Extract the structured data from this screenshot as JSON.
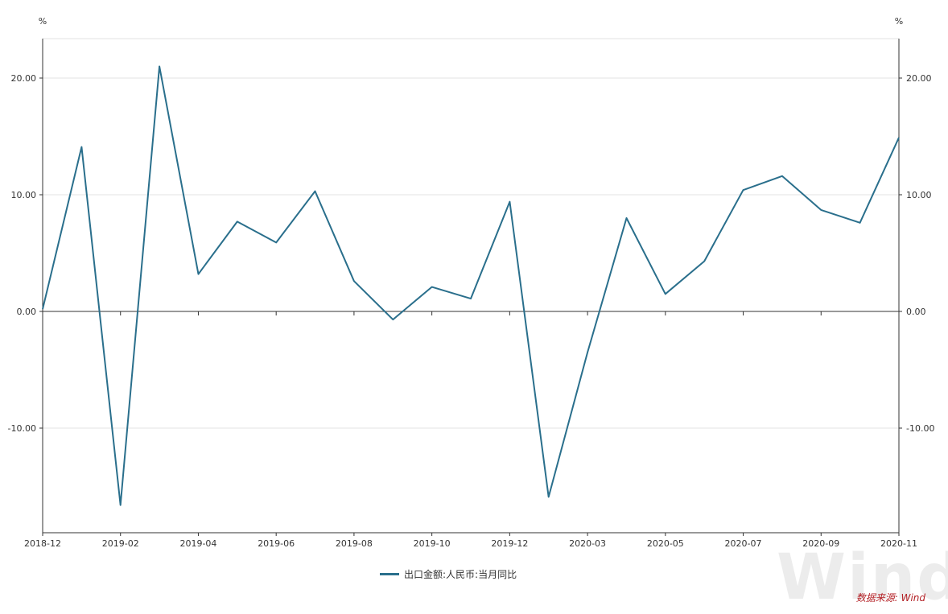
{
  "chart_data": {
    "type": "line",
    "y_unit_left": "%",
    "y_unit_right": "%",
    "ylim": [
      -19,
      23.5
    ],
    "yticks": [
      -10,
      0,
      10,
      20
    ],
    "ytick_labels": [
      "-10.00",
      "0.00",
      "10.00",
      "20.00"
    ],
    "grid": true,
    "xtick_labels": [
      "2018-12",
      "2019-02",
      "2019-04",
      "2019-06",
      "2019-08",
      "2019-10",
      "2019-12",
      "2020-03",
      "2020-05",
      "2020-07",
      "2020-09",
      "2020-11"
    ],
    "x": [
      "2018-12",
      "2019-01",
      "2019-02",
      "2019-03",
      "2019-04",
      "2019-05",
      "2019-06",
      "2019-07",
      "2019-08",
      "2019-09",
      "2019-10",
      "2019-11",
      "2019-12",
      "2020-02",
      "2020-03",
      "2020-04",
      "2020-05",
      "2020-06",
      "2020-07",
      "2020-08",
      "2020-09",
      "2020-10",
      "2020-11"
    ],
    "series": [
      {
        "name": "出口金额:人民币:当月同比",
        "color": "#2a6f8c",
        "values": [
          0.2,
          14.1,
          -16.6,
          21.0,
          3.2,
          7.7,
          5.9,
          10.3,
          2.6,
          -0.7,
          2.1,
          1.1,
          9.4,
          -15.9,
          -3.5,
          8.0,
          1.5,
          4.3,
          10.4,
          11.6,
          8.7,
          7.6,
          14.9
        ]
      }
    ],
    "legend_position": "bottom-center"
  },
  "watermark": "Wind",
  "source_note": "数据来源: Wind"
}
